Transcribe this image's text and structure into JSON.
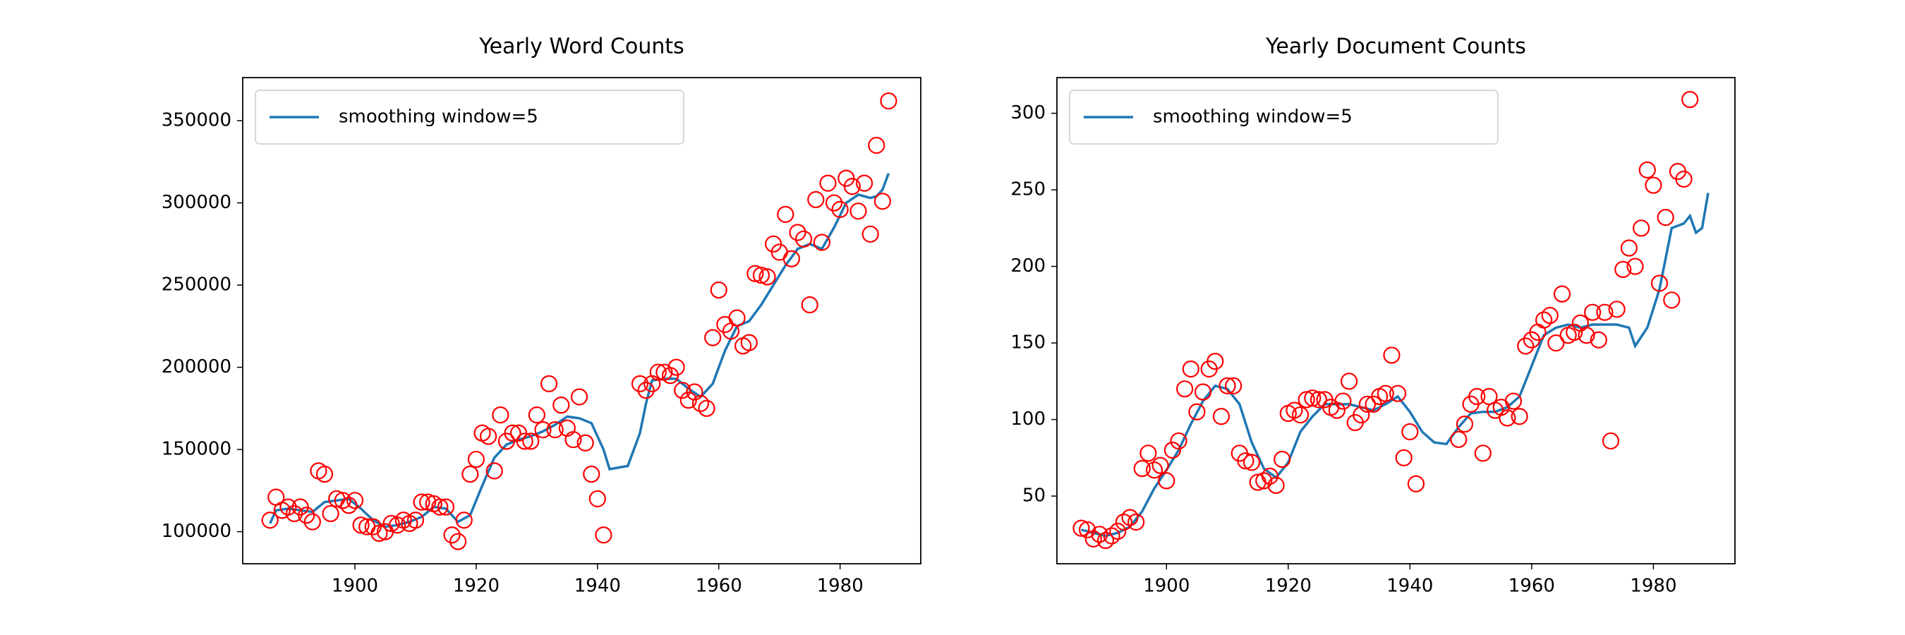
{
  "chart_data": [
    {
      "type": "scatter",
      "title": "Yearly Word Counts",
      "legend": "upper left",
      "xlim": [
        1881.5,
        1993.3
      ],
      "ylim": [
        80500,
        376200
      ],
      "xticks": [
        1900,
        1920,
        1940,
        1960,
        1980
      ],
      "yticks": [
        100000,
        150000,
        200000,
        250000,
        300000,
        350000
      ],
      "series": [
        {
          "name": "smoothing window=5",
          "type": "line",
          "color": "#1f77b4",
          "x": [
            1886,
            1887,
            1889,
            1891,
            1893,
            1895,
            1897,
            1899,
            1901,
            1903,
            1905,
            1907,
            1909,
            1911,
            1913,
            1915,
            1917,
            1919,
            1921,
            1923,
            1925,
            1927,
            1929,
            1931,
            1933,
            1935,
            1937,
            1939,
            1941,
            1942,
            1945,
            1947,
            1948,
            1949,
            1951,
            1953,
            1955,
            1957,
            1959,
            1961,
            1963,
            1965,
            1967,
            1969,
            1971,
            1973,
            1975,
            1977,
            1979,
            1981,
            1983,
            1985,
            1986,
            1987,
            1988
          ],
          "values": [
            105000,
            113000,
            114000,
            113000,
            112000,
            118000,
            119000,
            120000,
            114000,
            107000,
            103000,
            104000,
            106000,
            109000,
            115000,
            114000,
            106000,
            110000,
            128000,
            145000,
            153000,
            156000,
            158000,
            161000,
            165000,
            170000,
            169000,
            166000,
            150000,
            138000,
            140000,
            160000,
            178000,
            192000,
            193000,
            193000,
            187000,
            182000,
            190000,
            210000,
            225000,
            228000,
            238000,
            250000,
            262000,
            272000,
            275000,
            272000,
            285000,
            300000,
            305000,
            303000,
            304000,
            308000,
            318000
          ]
        },
        {
          "type": "scatter",
          "color": "#ff0000",
          "x": [
            1886,
            1887,
            1888,
            1889,
            1890,
            1891,
            1892,
            1893,
            1894,
            1895,
            1896,
            1897,
            1898,
            1899,
            1900,
            1901,
            1902,
            1903,
            1904,
            1905,
            1906,
            1907,
            1908,
            1909,
            1910,
            1911,
            1912,
            1913,
            1914,
            1915,
            1916,
            1917,
            1918,
            1919,
            1920,
            1921,
            1922,
            1923,
            1924,
            1925,
            1926,
            1927,
            1928,
            1929,
            1930,
            1931,
            1932,
            1933,
            1934,
            1935,
            1936,
            1937,
            1938,
            1939,
            1940,
            1941,
            1947,
            1948,
            1949,
            1950,
            1951,
            1952,
            1953,
            1954,
            1955,
            1956,
            1957,
            1958,
            1959,
            1960,
            1961,
            1962,
            1963,
            1964,
            1965,
            1966,
            1967,
            1968,
            1969,
            1970,
            1971,
            1972,
            1973,
            1974,
            1975,
            1976,
            1977,
            1978,
            1979,
            1980,
            1981,
            1982,
            1983,
            1984,
            1985,
            1986,
            1987,
            1988
          ],
          "values": [
            107000,
            121000,
            113000,
            115000,
            111000,
            115000,
            110000,
            106000,
            137000,
            135000,
            111000,
            120000,
            119000,
            116000,
            119000,
            104000,
            103000,
            103000,
            99000,
            100000,
            105000,
            104000,
            107000,
            105000,
            107000,
            118000,
            118000,
            117000,
            115000,
            115000,
            98000,
            94000,
            107000,
            135000,
            144000,
            160000,
            158000,
            137000,
            171000,
            155000,
            160000,
            160000,
            155000,
            155000,
            171000,
            162000,
            190000,
            162000,
            177000,
            163000,
            156000,
            182000,
            154000,
            135000,
            120000,
            98000,
            190000,
            186000,
            190000,
            197000,
            197000,
            195000,
            200000,
            186000,
            180000,
            185000,
            178000,
            175000,
            218000,
            247000,
            226000,
            222000,
            230000,
            213000,
            215000,
            257000,
            256000,
            255000,
            275000,
            270000,
            293000,
            266000,
            282000,
            278000,
            238000,
            302000,
            276000,
            312000,
            300000,
            296000,
            315000,
            310000,
            295000,
            312000,
            281000,
            335000,
            301000,
            362000
          ]
        }
      ]
    },
    {
      "type": "scatter",
      "title": "Yearly Document Counts",
      "legend": "upper left",
      "xlim": [
        1882,
        1993.4
      ],
      "ylim": [
        5.8,
        323.3
      ],
      "xticks": [
        1900,
        1920,
        1940,
        1960,
        1980
      ],
      "yticks": [
        50,
        100,
        150,
        200,
        250,
        300
      ],
      "series": [
        {
          "name": "smoothing window=5",
          "type": "line",
          "color": "#1f77b4",
          "x": [
            1886,
            1888,
            1890,
            1892,
            1894,
            1896,
            1898,
            1900,
            1902,
            1904,
            1906,
            1908,
            1910,
            1912,
            1914,
            1916,
            1918,
            1920,
            1922,
            1924,
            1926,
            1928,
            1930,
            1932,
            1934,
            1936,
            1938,
            1940,
            1942,
            1944,
            1946,
            1948,
            1950,
            1952,
            1954,
            1956,
            1958,
            1960,
            1962,
            1964,
            1966,
            1968,
            1970,
            1972,
            1974,
            1976,
            1977,
            1979,
            1981,
            1983,
            1985,
            1986,
            1987,
            1988,
            1989
          ],
          "values": [
            28,
            26,
            24,
            26,
            30,
            40,
            55,
            67,
            80,
            97,
            112,
            122,
            120,
            110,
            85,
            68,
            62,
            72,
            92,
            102,
            110,
            110,
            110,
            108,
            106,
            110,
            115,
            105,
            92,
            85,
            84,
            95,
            104,
            105,
            105,
            108,
            115,
            135,
            155,
            160,
            162,
            160,
            162,
            162,
            162,
            160,
            148,
            160,
            185,
            225,
            228,
            233,
            222,
            225,
            248
          ]
        },
        {
          "type": "scatter",
          "color": "#ff0000",
          "x": [
            1886,
            1887,
            1888,
            1889,
            1890,
            1891,
            1892,
            1893,
            1894,
            1895,
            1896,
            1897,
            1898,
            1899,
            1900,
            1901,
            1902,
            1903,
            1904,
            1905,
            1906,
            1907,
            1908,
            1909,
            1910,
            1911,
            1912,
            1913,
            1914,
            1915,
            1916,
            1917,
            1918,
            1919,
            1920,
            1921,
            1922,
            1923,
            1924,
            1925,
            1926,
            1927,
            1928,
            1929,
            1930,
            1931,
            1932,
            1933,
            1934,
            1935,
            1936,
            1937,
            1938,
            1939,
            1940,
            1941,
            1948,
            1949,
            1950,
            1951,
            1952,
            1953,
            1954,
            1955,
            1956,
            1957,
            1958,
            1959,
            1960,
            1961,
            1962,
            1963,
            1964,
            1965,
            1966,
            1967,
            1968,
            1969,
            1970,
            1971,
            1972,
            1973,
            1974,
            1975,
            1976,
            1977,
            1978,
            1979,
            1980,
            1981,
            1982,
            1983,
            1984,
            1985,
            1986
          ],
          "values": [
            29,
            28,
            22,
            25,
            21,
            24,
            27,
            33,
            36,
            33,
            68,
            78,
            67,
            70,
            60,
            80,
            86,
            120,
            133,
            105,
            118,
            133,
            138,
            102,
            122,
            122,
            78,
            73,
            72,
            59,
            60,
            63,
            57,
            74,
            104,
            106,
            103,
            113,
            114,
            113,
            113,
            108,
            106,
            112,
            125,
            98,
            103,
            110,
            110,
            115,
            117,
            142,
            117,
            75,
            92,
            58,
            87,
            97,
            110,
            115,
            78,
            115,
            106,
            108,
            101,
            112,
            102,
            148,
            152,
            157,
            165,
            168,
            150,
            182,
            155,
            157,
            163,
            155,
            170,
            152,
            170,
            86,
            172,
            198,
            212,
            200,
            225,
            263,
            253,
            189,
            232,
            178,
            262,
            257,
            309
          ]
        }
      ]
    }
  ]
}
